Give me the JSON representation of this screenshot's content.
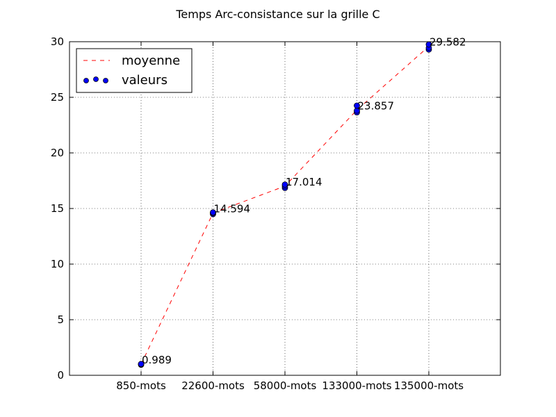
{
  "chart_data": {
    "type": "line",
    "title": "Temps Arc-consistance sur la grille C",
    "xlabel": "",
    "ylabel": "",
    "categories": [
      "850-mots",
      "22600-mots",
      "58000-mots",
      "133000-mots",
      "135000-mots"
    ],
    "ylim": [
      0,
      30
    ],
    "yticks": [
      0,
      5,
      10,
      15,
      20,
      25,
      30
    ],
    "grid": true,
    "legend_position": "top-left",
    "series": [
      {
        "name": "moyenne",
        "style": "dashed-line",
        "color": "#ff0000",
        "values": [
          0.989,
          14.594,
          17.014,
          23.857,
          29.582
        ]
      },
      {
        "name": "valeurs",
        "style": "scatter",
        "color": "#0000ff",
        "points": [
          [
            0,
            0.95
          ],
          [
            0,
            1.0
          ],
          [
            0,
            1.02
          ],
          [
            1,
            14.5
          ],
          [
            1,
            14.6
          ],
          [
            1,
            14.65
          ],
          [
            2,
            16.85
          ],
          [
            2,
            17.0
          ],
          [
            2,
            17.15
          ],
          [
            3,
            23.65
          ],
          [
            3,
            23.8
          ],
          [
            3,
            24.25
          ],
          [
            4,
            29.3
          ],
          [
            4,
            29.45
          ],
          [
            4,
            29.75
          ]
        ]
      }
    ],
    "data_labels": [
      "0.989",
      "14.594",
      "17.014",
      "23.857",
      "29.582"
    ]
  }
}
